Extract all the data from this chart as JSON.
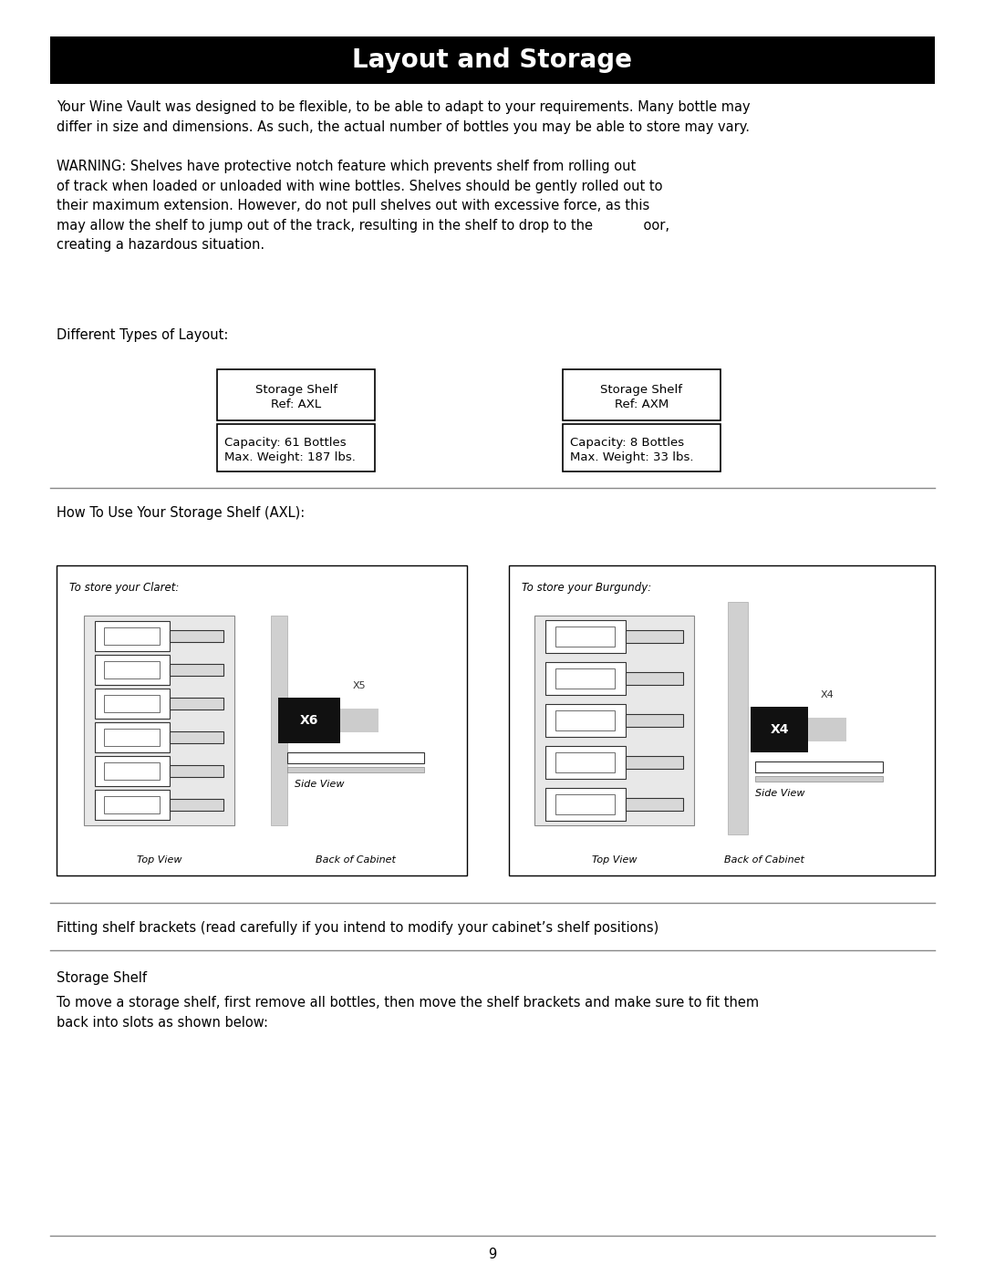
{
  "title": "Layout and Storage",
  "title_bg": "#000000",
  "title_color": "#ffffff",
  "title_fontsize": 20,
  "body_fontsize": 10.5,
  "small_fontsize": 8,
  "bg_color": "#ffffff",
  "page_number": "9",
  "para1": "Your Wine Vault was designed to be flexible, to be able to adapt to your requirements. Many bottle may\ndiffer in size and dimensions. As such, the actual number of bottles you may be able to store may vary.",
  "warning_text": "WARNING: Shelves have protective notch feature which prevents shelf from rolling out\nof track when loaded or unloaded with wine bottles. Shelves should be gently rolled out to\ntheir maximum extension. However, do not pull shelves out with excessive force, as this\nmay allow the shelf to jump out of the track, resulting in the shelf to drop to the            oor,\ncreating a hazardous situation.",
  "diff_types_label": "Different Types of Layout:",
  "box1_line1": "Storage Shelf",
  "box1_line2": "Ref: AXL",
  "box1_cap1": "Capacity: 61 Bottles",
  "box1_cap2": "Max. Weight: 187 lbs.",
  "box2_line1": "Storage Shelf",
  "box2_line2": "Ref: AXM",
  "box2_cap1": "Capacity: 8 Bottles",
  "box2_cap2": "Max. Weight: 33 lbs.",
  "section2_label": "How To Use Your Storage Shelf (AXL):",
  "claret_label": "To store your Claret:",
  "burgundy_label": "To store your Burgundy:",
  "top_view_label": "Top View",
  "back_cabinet_label": "Back of Cabinet",
  "side_view_label": "Side View",
  "x6_label": "X6",
  "x5_label": "X5",
  "x4_label": "X4",
  "x4b_label": "X4",
  "fitting_text": "Fitting shelf brackets (read carefully if you intend to modify your cabinet’s shelf positions)",
  "storage_shelf_label": "Storage Shelf",
  "storage_para": "To move a storage shelf, first remove all bottles, then move the shelf brackets and make sure to fit them\nback into slots as shown below:"
}
